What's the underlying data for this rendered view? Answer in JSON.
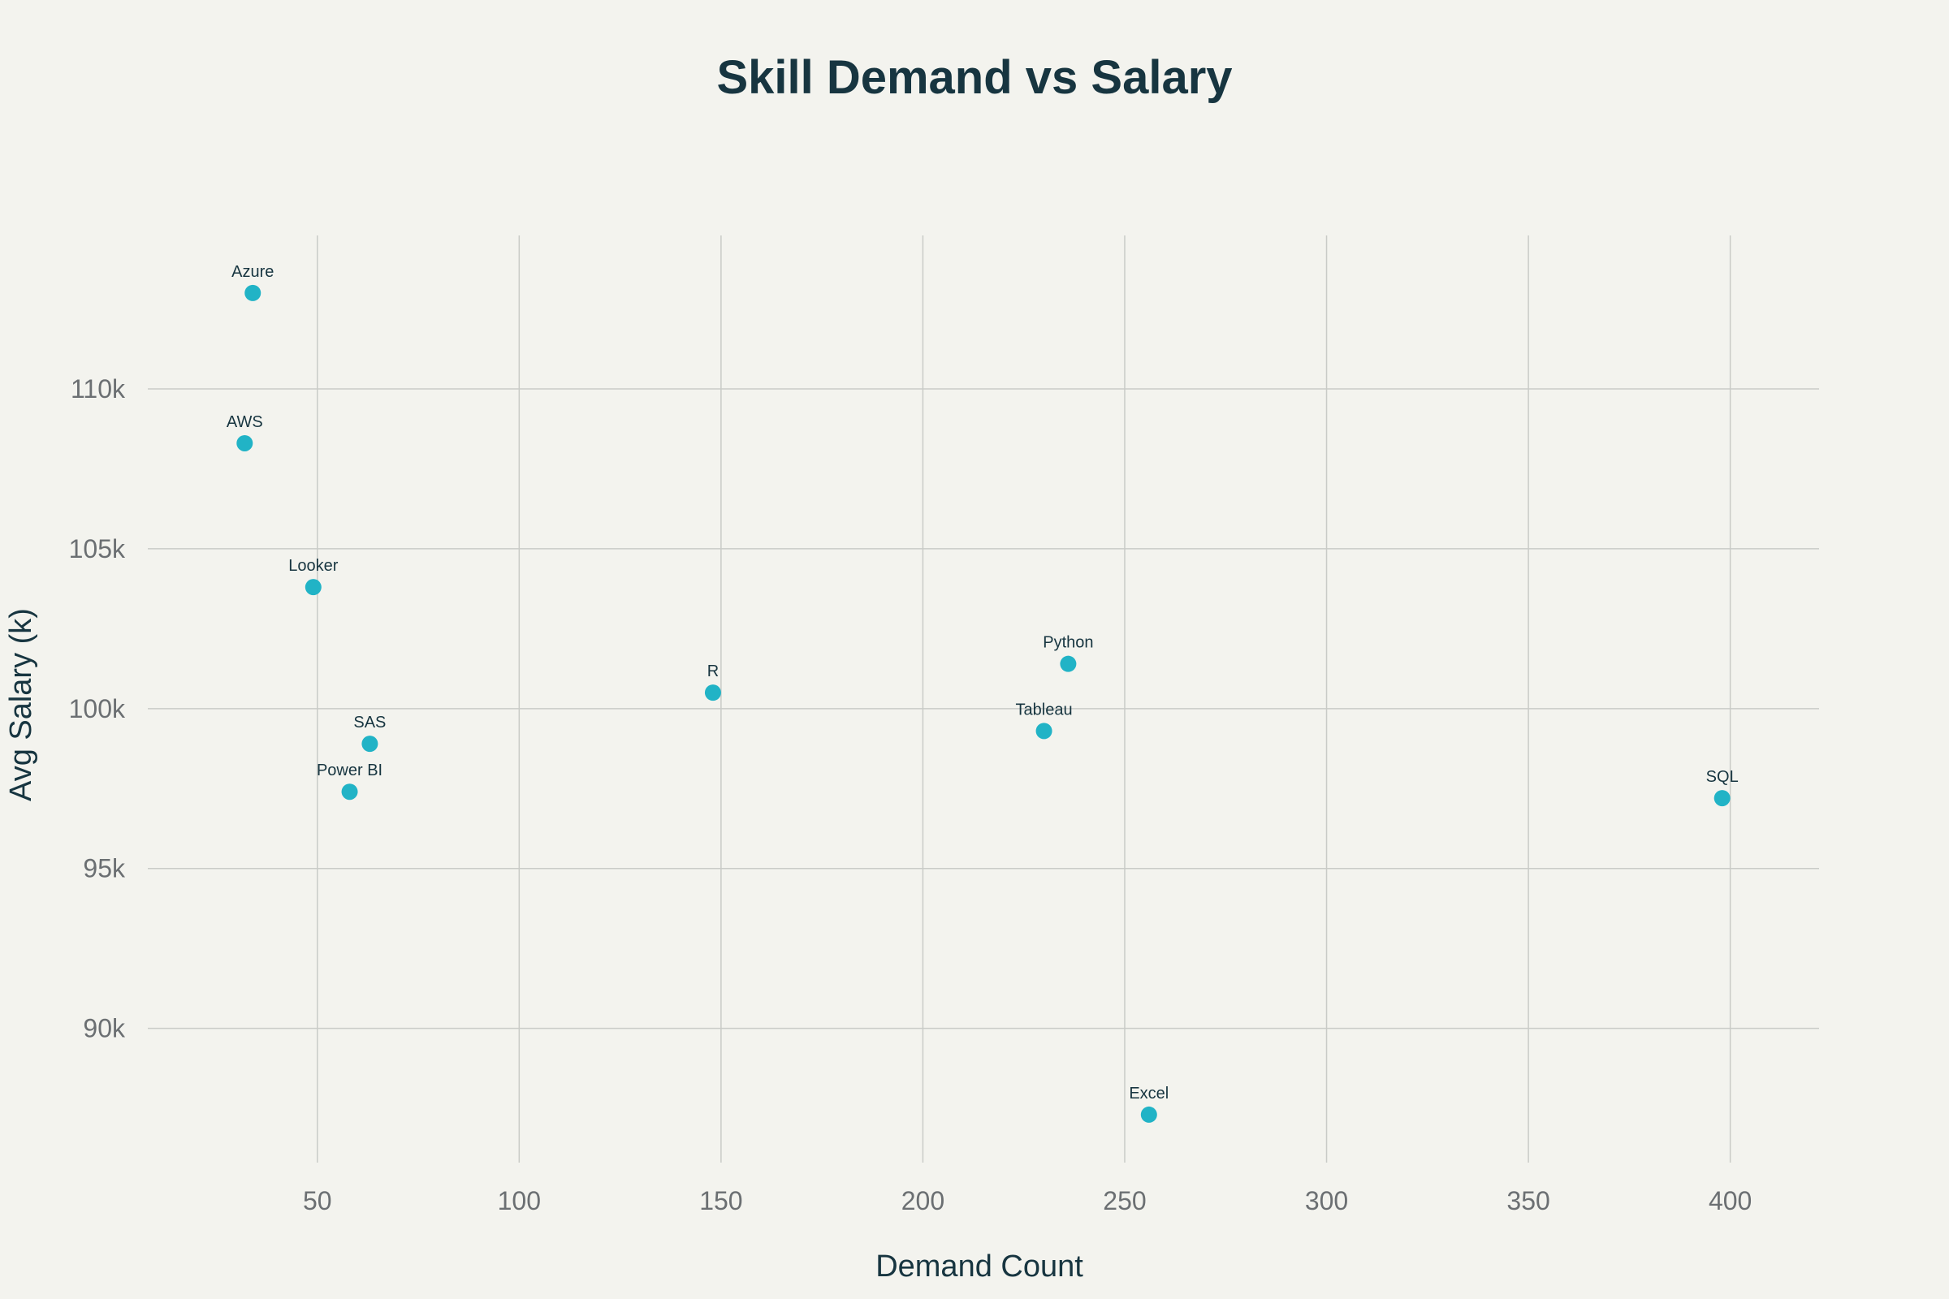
{
  "chart_data": {
    "type": "scatter",
    "title": "Skill Demand vs Salary",
    "xlabel": "Demand Count",
    "ylabel": "Avg Salary (k)",
    "xlim": [
      8,
      422
    ],
    "ylim": [
      85800,
      114800
    ],
    "x_ticks": [
      50,
      100,
      150,
      200,
      250,
      300,
      350,
      400
    ],
    "x_tick_labels": [
      "50",
      "100",
      "150",
      "200",
      "250",
      "300",
      "350",
      "400"
    ],
    "y_ticks": [
      90000,
      95000,
      100000,
      105000,
      110000
    ],
    "y_tick_labels": [
      "90k",
      "95k",
      "100k",
      "105k",
      "110k"
    ],
    "grid": true,
    "marker_color": "#21b3c6",
    "points": [
      {
        "label": "Azure",
        "x": 34,
        "y": 113000
      },
      {
        "label": "AWS",
        "x": 32,
        "y": 108300
      },
      {
        "label": "Looker",
        "x": 49,
        "y": 103800
      },
      {
        "label": "SAS",
        "x": 63,
        "y": 98900
      },
      {
        "label": "Power BI",
        "x": 58,
        "y": 97400
      },
      {
        "label": "R",
        "x": 148,
        "y": 100500
      },
      {
        "label": "Python",
        "x": 236,
        "y": 101400
      },
      {
        "label": "Tableau",
        "x": 230,
        "y": 99300
      },
      {
        "label": "Excel",
        "x": 256,
        "y": 87300
      },
      {
        "label": "SQL",
        "x": 398,
        "y": 97200
      }
    ]
  }
}
